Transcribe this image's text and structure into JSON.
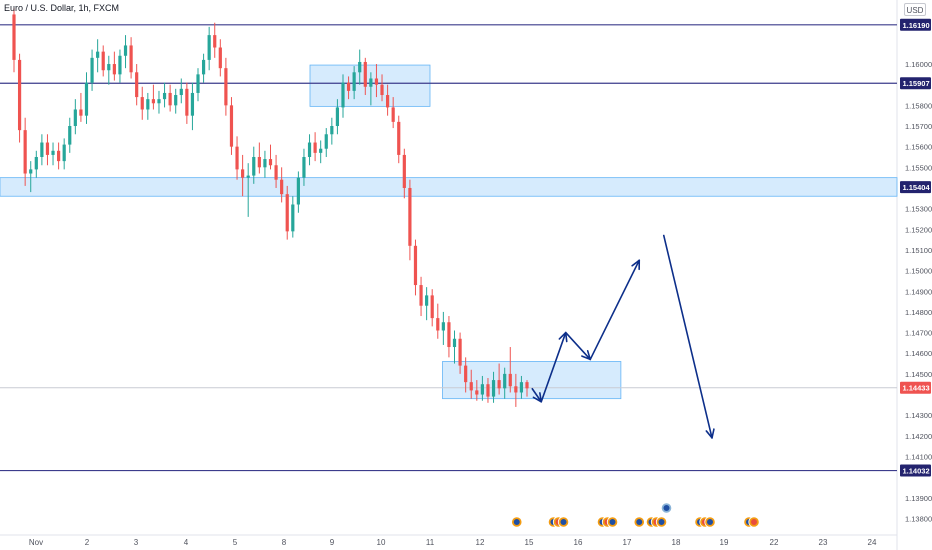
{
  "chart_title": "Euro / U.S. Dollar, 1h, FXCM",
  "currency_label": "USD",
  "colors": {
    "up": "#26a69a",
    "down": "#ef5350",
    "level_line": "#3c3c8c",
    "level_label_bg": "#23236e",
    "zone_fill": "#bbdefb",
    "zone_stroke": "#64b5f6",
    "arrow": "#0d2f8a",
    "current_price_bg": "#ef5350",
    "axis_text": "#50535e",
    "price_line": "#c9cbd4"
  },
  "chart_data": {
    "type": "candlestick",
    "title": "Euro / U.S. Dollar, 1h, FXCM",
    "x_ticks": [
      "Nov",
      "2",
      "3",
      "4",
      "5",
      "8",
      "9",
      "10",
      "11",
      "12",
      "15",
      "16",
      "17",
      "18",
      "19",
      "22",
      "23",
      "24"
    ],
    "y_ticks": [
      1.1619,
      1.16,
      1.159,
      1.158,
      1.157,
      1.156,
      1.155,
      1.154,
      1.153,
      1.152,
      1.151,
      1.15,
      1.149,
      1.148,
      1.147,
      1.146,
      1.145,
      1.144,
      1.143,
      1.142,
      1.141,
      1.14,
      1.139,
      1.138
    ],
    "y_tick_labels": [
      "1.16190",
      "1.16000",
      "1.15900",
      "1.15800",
      "1.15700",
      "1.15600",
      "1.15500",
      "1.15400",
      "1.15300",
      "1.15200",
      "1.15100",
      "1.15000",
      "1.14900",
      "1.14800",
      "1.14700",
      "1.14600",
      "1.14500",
      "1.14400",
      "1.14300",
      "1.14200",
      "1.14100",
      "1.14000",
      "1.13900",
      "1.13800"
    ],
    "ylim": [
      1.1372,
      1.1631
    ],
    "horizontal_levels": [
      {
        "price": 1.1619,
        "label": "1.16190"
      },
      {
        "price": 1.15907,
        "label": "1.15907"
      },
      {
        "price": 1.14032,
        "label": "1.14032"
      }
    ],
    "highlighted_level": {
      "price": 1.15404,
      "label": "1.15404"
    },
    "current_price": {
      "price": 1.14433,
      "label": "1.14433"
    },
    "zones": [
      {
        "from": "Nov 1",
        "to": "Nov 24+",
        "top": 1.1545,
        "bottom": 1.1536
      },
      {
        "from": "Nov 8 13:00",
        "to": "Nov 11 00:00",
        "top": 1.15995,
        "bottom": 1.15795
      },
      {
        "from": "Nov 11 06:00",
        "to": "Nov 16 21:00",
        "top": 1.1456,
        "bottom": 1.1438
      }
    ],
    "projection_path": [
      {
        "t": "Nov 15 06:00",
        "price": 1.14365
      },
      {
        "t": "Nov 15 18:00",
        "price": 1.147
      },
      {
        "t": "Nov 16 06:00",
        "price": 1.1457
      },
      {
        "t": "Nov 17 06:00",
        "price": 1.1505
      }
    ],
    "projection_drop": {
      "from": {
        "t": "Nov 17 18:00",
        "price": 1.1517
      },
      "to": {
        "t": "Nov 18 18:00",
        "price": 1.1419
      }
    },
    "event_markers": [
      {
        "t": "Nov 14 18:00",
        "count": 1
      },
      {
        "t": "Nov 15 12:00",
        "count": 3
      },
      {
        "t": "Nov 16 12:00",
        "count": 3
      },
      {
        "t": "Nov 17 06:00",
        "count": 1
      },
      {
        "t": "Nov 17 12:00",
        "count": 3,
        "extra_above": true
      },
      {
        "t": "Nov 18 12:00",
        "count": 3
      },
      {
        "t": "Nov 19 12:00",
        "count": 1
      },
      {
        "t": "Nov 20 12:00",
        "count": 2
      }
    ],
    "candles": [
      [
        1.1624,
        1.1627,
        1.1596,
        1.1602
      ],
      [
        1.1602,
        1.1605,
        1.1562,
        1.1568
      ],
      [
        1.1568,
        1.1574,
        1.1541,
        1.1547
      ],
      [
        1.1547,
        1.1553,
        1.1538,
        1.1549
      ],
      [
        1.1549,
        1.1558,
        1.1545,
        1.1555
      ],
      [
        1.1555,
        1.1566,
        1.1551,
        1.1562
      ],
      [
        1.1562,
        1.1566,
        1.1551,
        1.1556
      ],
      [
        1.1556,
        1.1562,
        1.1551,
        1.1558
      ],
      [
        1.1558,
        1.1562,
        1.1549,
        1.1553
      ],
      [
        1.1553,
        1.1564,
        1.1549,
        1.1561
      ],
      [
        1.1561,
        1.1574,
        1.1557,
        1.157
      ],
      [
        1.157,
        1.1583,
        1.1566,
        1.1578
      ],
      [
        1.1578,
        1.1586,
        1.1572,
        1.1575
      ],
      [
        1.1575,
        1.1596,
        1.1571,
        1.1591
      ],
      [
        1.1591,
        1.1607,
        1.1587,
        1.1603
      ],
      [
        1.1603,
        1.1612,
        1.1596,
        1.1606
      ],
      [
        1.1606,
        1.1609,
        1.1594,
        1.1597
      ],
      [
        1.1597,
        1.1604,
        1.159,
        1.16
      ],
      [
        1.16,
        1.1606,
        1.1592,
        1.1595
      ],
      [
        1.1595,
        1.1607,
        1.1591,
        1.1604
      ],
      [
        1.1604,
        1.1614,
        1.1598,
        1.1609
      ],
      [
        1.1609,
        1.1613,
        1.1593,
        1.1596
      ],
      [
        1.1596,
        1.16,
        1.158,
        1.1584
      ],
      [
        1.1584,
        1.1589,
        1.1573,
        1.1578
      ],
      [
        1.1578,
        1.1586,
        1.1573,
        1.1583
      ],
      [
        1.1583,
        1.159,
        1.1578,
        1.1581
      ],
      [
        1.1581,
        1.1587,
        1.1576,
        1.1583
      ],
      [
        1.1583,
        1.1591,
        1.1579,
        1.1586
      ],
      [
        1.1586,
        1.159,
        1.1577,
        1.158
      ],
      [
        1.158,
        1.1588,
        1.1576,
        1.1585
      ],
      [
        1.1585,
        1.1593,
        1.1581,
        1.1588
      ],
      [
        1.1588,
        1.1591,
        1.1571,
        1.1575
      ],
      [
        1.1575,
        1.1591,
        1.1568,
        1.1586
      ],
      [
        1.1586,
        1.1598,
        1.1582,
        1.1595
      ],
      [
        1.1595,
        1.1605,
        1.1591,
        1.1602
      ],
      [
        1.1602,
        1.1618,
        1.1597,
        1.1614
      ],
      [
        1.1614,
        1.162,
        1.1603,
        1.1608
      ],
      [
        1.1608,
        1.1612,
        1.1594,
        1.1598
      ],
      [
        1.1598,
        1.1603,
        1.1575,
        1.158
      ],
      [
        1.158,
        1.1584,
        1.1556,
        1.156
      ],
      [
        1.156,
        1.1565,
        1.1544,
        1.1549
      ],
      [
        1.1549,
        1.1556,
        1.1536,
        1.1545
      ],
      [
        1.1545,
        1.1552,
        1.1526,
        1.1546
      ],
      [
        1.1546,
        1.156,
        1.1542,
        1.1555
      ],
      [
        1.1555,
        1.1562,
        1.1547,
        1.155
      ],
      [
        1.155,
        1.1558,
        1.1545,
        1.1554
      ],
      [
        1.1554,
        1.1561,
        1.1549,
        1.1551
      ],
      [
        1.1551,
        1.1556,
        1.154,
        1.1544
      ],
      [
        1.1544,
        1.155,
        1.1533,
        1.1537
      ],
      [
        1.1537,
        1.1541,
        1.1515,
        1.1519
      ],
      [
        1.1519,
        1.1536,
        1.1516,
        1.1532
      ],
      [
        1.1532,
        1.1548,
        1.1528,
        1.1545
      ],
      [
        1.1545,
        1.1559,
        1.1541,
        1.1555
      ],
      [
        1.1555,
        1.1566,
        1.1551,
        1.1562
      ],
      [
        1.1562,
        1.1567,
        1.1553,
        1.1557
      ],
      [
        1.1557,
        1.1563,
        1.1552,
        1.1559
      ],
      [
        1.1559,
        1.1569,
        1.1555,
        1.1566
      ],
      [
        1.1566,
        1.1574,
        1.1561,
        1.157
      ],
      [
        1.157,
        1.1583,
        1.1566,
        1.1579
      ],
      [
        1.1579,
        1.1595,
        1.1574,
        1.1591
      ],
      [
        1.1591,
        1.1594,
        1.1583,
        1.1587
      ],
      [
        1.1587,
        1.1599,
        1.1583,
        1.1596
      ],
      [
        1.1596,
        1.1607,
        1.159,
        1.1601
      ],
      [
        1.1601,
        1.1603,
        1.1585,
        1.1589
      ],
      [
        1.1589,
        1.1596,
        1.158,
        1.1593
      ],
      [
        1.1593,
        1.16,
        1.1584,
        1.159
      ],
      [
        1.159,
        1.1595,
        1.1582,
        1.1585
      ],
      [
        1.1585,
        1.159,
        1.1575,
        1.1579
      ],
      [
        1.1579,
        1.1584,
        1.1569,
        1.1572
      ],
      [
        1.1572,
        1.1575,
        1.1552,
        1.1556
      ],
      [
        1.1556,
        1.1559,
        1.1535,
        1.154
      ],
      [
        1.154,
        1.1544,
        1.1505,
        1.1512
      ],
      [
        1.1512,
        1.1515,
        1.1488,
        1.1493
      ],
      [
        1.1493,
        1.1497,
        1.1478,
        1.1483
      ],
      [
        1.1483,
        1.1492,
        1.1476,
        1.1488
      ],
      [
        1.1488,
        1.1491,
        1.1473,
        1.1477
      ],
      [
        1.1477,
        1.1484,
        1.1467,
        1.1471
      ],
      [
        1.1471,
        1.148,
        1.1464,
        1.1475
      ],
      [
        1.1475,
        1.1478,
        1.1458,
        1.1463
      ],
      [
        1.1463,
        1.1471,
        1.1455,
        1.1467
      ],
      [
        1.1467,
        1.147,
        1.145,
        1.1454
      ],
      [
        1.1454,
        1.1458,
        1.1441,
        1.1446
      ],
      [
        1.1446,
        1.1452,
        1.1438,
        1.1442
      ],
      [
        1.1442,
        1.1447,
        1.1437,
        1.144
      ],
      [
        1.144,
        1.1449,
        1.1437,
        1.1445
      ],
      [
        1.1445,
        1.1448,
        1.1436,
        1.1439
      ],
      [
        1.1439,
        1.1451,
        1.1436,
        1.1447
      ],
      [
        1.1447,
        1.1455,
        1.144,
        1.1443
      ],
      [
        1.1443,
        1.1453,
        1.1438,
        1.145
      ],
      [
        1.145,
        1.1463,
        1.1441,
        1.1444
      ],
      [
        1.1444,
        1.145,
        1.1434,
        1.1441
      ],
      [
        1.1441,
        1.1449,
        1.1438,
        1.1446
      ],
      [
        1.1446,
        1.1447,
        1.1439,
        1.1443
      ]
    ]
  }
}
